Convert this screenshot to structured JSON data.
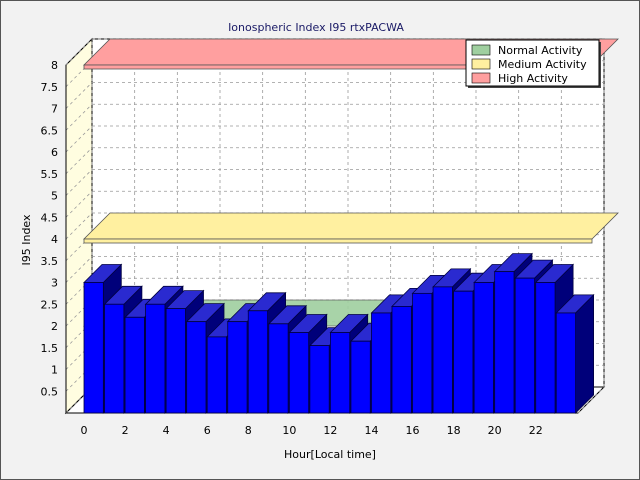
{
  "chart_data": {
    "type": "bar",
    "title": "Ionospheric Index I95 rtxPACWA",
    "xlabel": "Hour[Local time]",
    "ylabel": "I95 Index",
    "ylim": [
      0,
      8
    ],
    "yticks": [
      0.5,
      1,
      1.5,
      2,
      2.5,
      3,
      3.5,
      4,
      4.5,
      5,
      5.5,
      6,
      6.5,
      7,
      7.5,
      8
    ],
    "xticks": [
      0,
      2,
      4,
      6,
      8,
      10,
      12,
      14,
      16,
      18,
      20,
      22
    ],
    "x": [
      0,
      1,
      2,
      3,
      4,
      5,
      6,
      7,
      8,
      9,
      10,
      11,
      12,
      13,
      14,
      15,
      16,
      17,
      18,
      19,
      20,
      21,
      22,
      23
    ],
    "values": [
      3.0,
      2.5,
      2.2,
      2.5,
      2.4,
      2.1,
      1.75,
      2.1,
      2.35,
      2.05,
      1.85,
      1.55,
      1.85,
      1.65,
      2.3,
      2.45,
      2.75,
      2.9,
      2.8,
      3.0,
      3.25,
      3.1,
      3.0,
      2.3
    ],
    "series_color": "#0000ff",
    "bands": [
      {
        "name": "Normal Activity",
        "level": 2.0,
        "color": "#9fcf9f"
      },
      {
        "name": "Medium Activity",
        "level": 4.0,
        "color": "#fff0a0"
      },
      {
        "name": "High Activity",
        "level": 8.0,
        "color": "#ff9f9f"
      }
    ],
    "legend_position": "top-right",
    "grid": true
  }
}
